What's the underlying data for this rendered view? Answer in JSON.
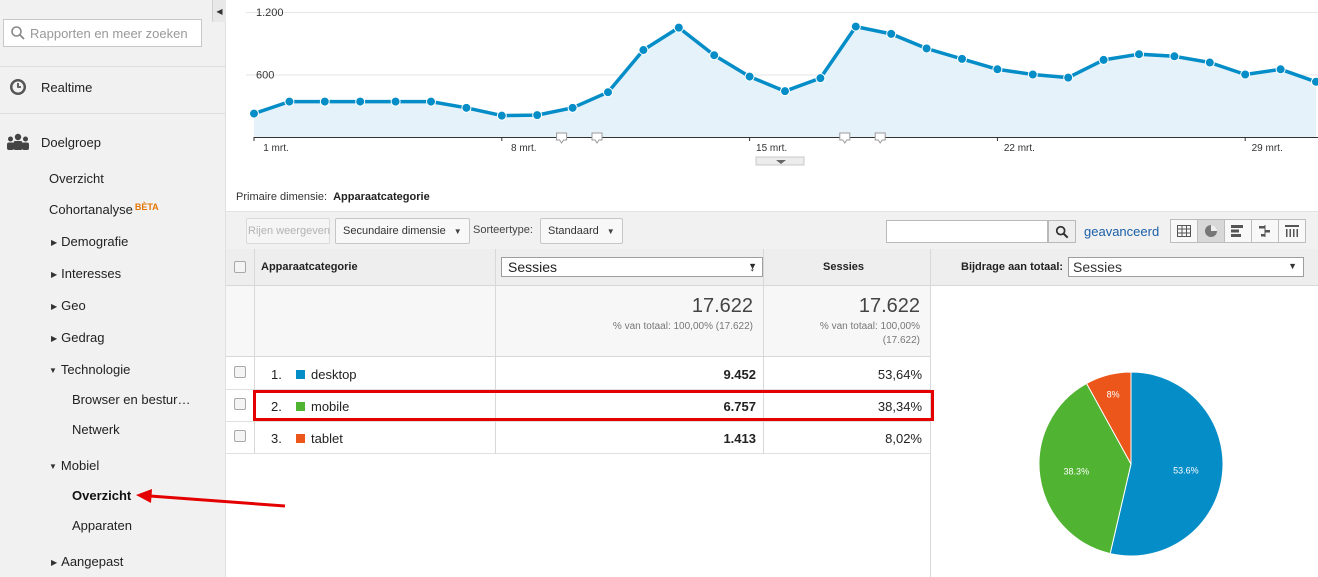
{
  "sidebar": {
    "search_placeholder": "Rapporten en meer zoeken",
    "realtime": "Realtime",
    "audience": "Doelgroep",
    "items": {
      "overview": "Overzicht",
      "cohort": "Cohortanalyse",
      "beta": "BÈTA",
      "demographics": "Demografie",
      "interests": "Interesses",
      "geo": "Geo",
      "behavior": "Gedrag",
      "technology": "Technologie",
      "browser": "Browser en bestur…",
      "network": "Netwerk",
      "mobile": "Mobiel",
      "mobile_overview": "Overzicht",
      "devices": "Apparaten",
      "custom": "Aangepast"
    }
  },
  "chart": {
    "y_ticks": [
      "1.200",
      "600"
    ],
    "x_ticks": [
      "1 mrt.",
      "8 mrt.",
      "15 mrt.",
      "22 mrt.",
      "29 mrt."
    ]
  },
  "chart_data": {
    "type": "area",
    "x": [
      "1 mrt.",
      "2 mrt.",
      "3 mrt.",
      "4 mrt.",
      "5 mrt.",
      "6 mrt.",
      "7 mrt.",
      "8 mrt.",
      "9 mrt.",
      "10 mrt.",
      "11 mrt.",
      "12 mrt.",
      "13 mrt.",
      "14 mrt.",
      "15 mrt.",
      "16 mrt.",
      "17 mrt.",
      "18 mrt.",
      "19 mrt.",
      "20 mrt.",
      "21 mrt.",
      "22 mrt.",
      "23 mrt.",
      "24 mrt.",
      "25 mrt.",
      "26 mrt.",
      "27 mrt.",
      "28 mrt.",
      "29 mrt.",
      "30 mrt.",
      "31 mrt."
    ],
    "series": [
      {
        "values": [
          225,
          340,
          340,
          340,
          340,
          340,
          280,
          205,
          210,
          280,
          430,
          835,
          1050,
          785,
          580,
          440,
          565,
          1060,
          990,
          850,
          750,
          650,
          600,
          570,
          740,
          795,
          775,
          715,
          600,
          650,
          530
        ]
      }
    ],
    "ylim": [
      0,
      1200
    ],
    "grid": true
  },
  "dimension": {
    "label": "Primaire dimensie:",
    "value": "Apparaatcategorie"
  },
  "toolbar": {
    "plot_rows": "Rijen weergeven",
    "secondary": "Secundaire dimensie",
    "sort_label": "Sorteertype:",
    "sort_value": "Standaard",
    "advanced": "geavanceerd"
  },
  "table": {
    "col_dimension": "Apparaatcategorie",
    "col_metric_select": "Sessies",
    "col_metric": "Sessies",
    "total_value": "17.622",
    "total_pct": "% van totaal: 100,00% (17.622)",
    "total_value2": "17.622",
    "total_pct2_a": "% van totaal: 100,00%",
    "total_pct2_b": "(17.622)",
    "rows": [
      {
        "idx": "1.",
        "name": "desktop",
        "value": "9.452",
        "pct": "53,64%",
        "color": "#058dc7"
      },
      {
        "idx": "2.",
        "name": "mobile",
        "value": "6.757",
        "pct": "38,34%",
        "color": "#50b432"
      },
      {
        "idx": "3.",
        "name": "tablet",
        "value": "1.413",
        "pct": "8,02%",
        "color": "#ed561b"
      }
    ]
  },
  "contribution": {
    "label": "Bijdrage aan totaal:",
    "select": "Sessies",
    "pie": [
      {
        "label": "53.6%",
        "value": 53.64,
        "color": "#058dc7"
      },
      {
        "label": "38.3%",
        "value": 38.34,
        "color": "#50b432"
      },
      {
        "label": "8%",
        "value": 8.02,
        "color": "#ed561b"
      }
    ]
  }
}
